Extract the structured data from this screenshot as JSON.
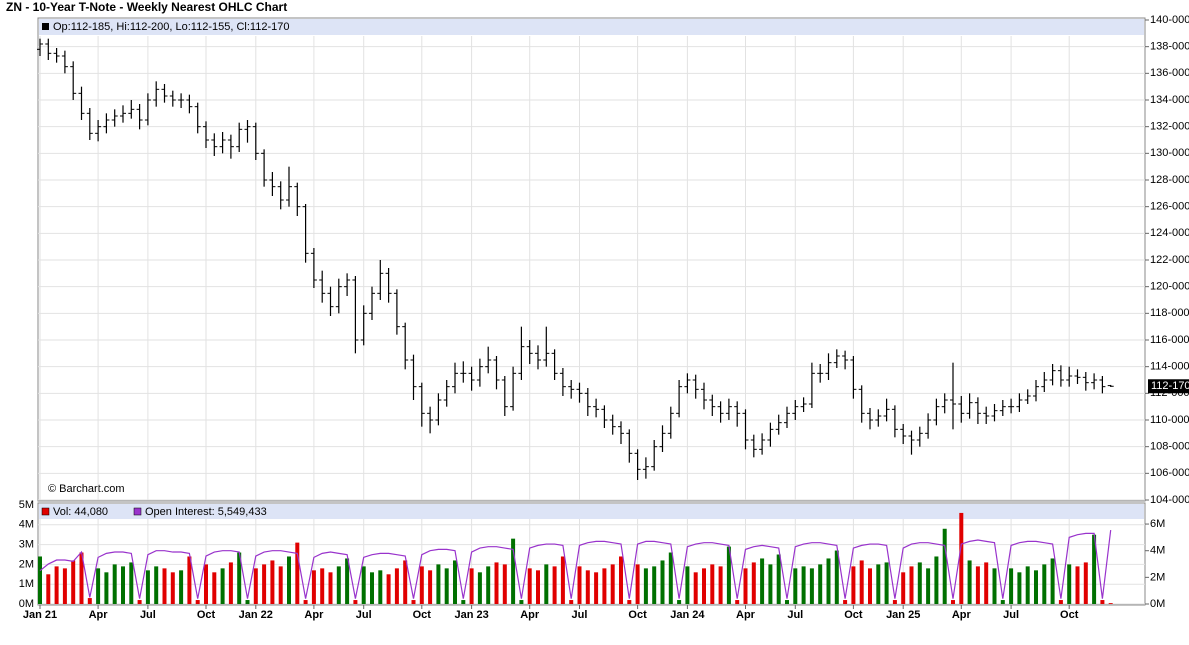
{
  "chart_data": [
    {
      "type": "ohlc",
      "title": "ZN - 10-Year T-Note - Weekly Nearest OHLC Chart",
      "legend_text": "Op:112-185, Hi:112-200, Lo:112-155, Cl:112-170",
      "annotation": "© Barchart.com",
      "last_label": "112-170",
      "color": "#000000",
      "grid": true,
      "ylim": [
        104,
        140
      ],
      "yticks": [
        {
          "value": 104,
          "label": "104-000"
        },
        {
          "value": 106,
          "label": "106-000"
        },
        {
          "value": 108,
          "label": "108-000"
        },
        {
          "value": 110,
          "label": "110-000"
        },
        {
          "value": 112,
          "label": "112-000"
        },
        {
          "value": 114,
          "label": "114-000"
        },
        {
          "value": 116,
          "label": "116-000"
        },
        {
          "value": 118,
          "label": "118-000"
        },
        {
          "value": 120,
          "label": "120-000"
        },
        {
          "value": 122,
          "label": "122-000"
        },
        {
          "value": 124,
          "label": "124-000"
        },
        {
          "value": 126,
          "label": "126-000"
        },
        {
          "value": 128,
          "label": "128-000"
        },
        {
          "value": 130,
          "label": "130-000"
        },
        {
          "value": 132,
          "label": "132-000"
        },
        {
          "value": 134,
          "label": "134-000"
        },
        {
          "value": 136,
          "label": "136-000"
        },
        {
          "value": 138,
          "label": "138-000"
        },
        {
          "value": 140,
          "label": "140-000"
        }
      ],
      "open": [
        137.8,
        138.2,
        137.5,
        137.3,
        136.5,
        134.5,
        133,
        131.5,
        132,
        132.5,
        132.8,
        133,
        133.3,
        132.5,
        134,
        134.8,
        134.3,
        134,
        134,
        133.5,
        132,
        131,
        130.5,
        131,
        130.5,
        131.8,
        132,
        130,
        128,
        127.5,
        126.5,
        127.5,
        126,
        122.5,
        120.5,
        119.5,
        118.5,
        120,
        120.5,
        116,
        118,
        119.5,
        121,
        119.5,
        117,
        114.5,
        112.5,
        110.5,
        110,
        111.5,
        112.5,
        113.5,
        113.5,
        113,
        114,
        114.5,
        113,
        111,
        113.5,
        115.5,
        115,
        114.5,
        115,
        113.5,
        112.5,
        112.3,
        112,
        111,
        110.8,
        110,
        109.5,
        109,
        107.5,
        106.3,
        106.5,
        108,
        109,
        110.5,
        112.5,
        113,
        112.3,
        111.5,
        111,
        110.5,
        111,
        110.5,
        108.5,
        107.8,
        108.5,
        109.3,
        109.8,
        110.5,
        111,
        111.2,
        113.5,
        113.5,
        114.3,
        114.8,
        114.5,
        112.3,
        110.5,
        110,
        110.3,
        110.8,
        109.3,
        108.8,
        108.5,
        109,
        110,
        111,
        111.5,
        111.2,
        110.5,
        111.3,
        110.5,
        110.3,
        110.7,
        111,
        111,
        111.5,
        111.8,
        112.5,
        113,
        113.7,
        113,
        113.3,
        113.2,
        112.8,
        113,
        112.58
      ],
      "high": [
        138.6,
        138.6,
        137.9,
        137.7,
        136.9,
        135,
        133.4,
        132.5,
        133,
        133.3,
        133.6,
        134,
        133.7,
        134.5,
        135.4,
        135.2,
        134.7,
        134.5,
        134.4,
        133.8,
        132.4,
        131.5,
        131.6,
        131.4,
        132.3,
        132.5,
        132.3,
        130.3,
        128.6,
        127.9,
        129,
        127.8,
        126.2,
        122.9,
        121.2,
        120,
        120.6,
        121,
        120.8,
        118.6,
        120,
        122,
        121.4,
        119.8,
        117.3,
        114.9,
        112.8,
        111,
        112,
        113,
        114.3,
        114.4,
        114,
        114.6,
        115.5,
        114.8,
        113.3,
        114,
        117,
        116,
        115.6,
        117,
        115.3,
        113.9,
        113,
        112.8,
        112.4,
        111.6,
        111.1,
        110.4,
        109.9,
        109.3,
        107.8,
        107.2,
        108.5,
        109.6,
        111,
        113,
        113.5,
        113.4,
        112.8,
        111.9,
        111.4,
        111.6,
        111.4,
        110.8,
        108.9,
        109,
        109.8,
        110.4,
        111,
        111.5,
        111.7,
        114.3,
        114.2,
        115,
        115.3,
        115.2,
        114.8,
        112.6,
        110.9,
        110.8,
        111.6,
        111.1,
        109.7,
        109.2,
        109.5,
        110.5,
        111.6,
        112,
        114.3,
        111.8,
        112,
        111.7,
        111,
        111.2,
        111.5,
        111.6,
        112,
        112.3,
        113,
        113.6,
        114.2,
        114.1,
        114,
        113.8,
        113.6,
        113.5,
        113.3,
        112.63
      ],
      "low": [
        137.3,
        137,
        136.8,
        136,
        134,
        132.5,
        131,
        130.9,
        131.5,
        132,
        132.3,
        132.6,
        131.8,
        132.1,
        133.5,
        133.8,
        133.5,
        133.4,
        133,
        131.5,
        130.4,
        129.8,
        130,
        129.6,
        130.1,
        130.8,
        129.5,
        127.5,
        126.8,
        125.8,
        126,
        125.3,
        121.8,
        119.9,
        118.8,
        117.8,
        118,
        119.3,
        115,
        115.6,
        117.5,
        119,
        118.8,
        116.4,
        113.8,
        111.5,
        109.5,
        109,
        109.6,
        111,
        112,
        112.8,
        112.2,
        112.5,
        113.5,
        112.3,
        110.3,
        110.7,
        113,
        114.2,
        113.8,
        114,
        113,
        111.8,
        111.6,
        111.3,
        110.3,
        110.2,
        109.4,
        108.9,
        108.2,
        106.8,
        105.5,
        105.6,
        106.2,
        107.6,
        108.6,
        110.2,
        112,
        111.6,
        110.8,
        110.3,
        109.8,
        110,
        109.5,
        107.8,
        107.2,
        107.4,
        108,
        108.9,
        109.4,
        110,
        110.6,
        110.9,
        112.8,
        113,
        113.9,
        113.8,
        111.6,
        109.8,
        109.3,
        109.5,
        109.9,
        108.7,
        108.2,
        107.4,
        108,
        108.6,
        109.6,
        110.5,
        109.3,
        109.8,
        110.1,
        109.7,
        109.7,
        109.9,
        110.3,
        110.5,
        110.6,
        111.2,
        111.4,
        112.1,
        112.6,
        112.5,
        112.5,
        112.7,
        112.2,
        112.3,
        112,
        112.48
      ],
      "close": [
        138.2,
        137.5,
        137.3,
        136.5,
        134.5,
        133,
        131.5,
        132,
        132.5,
        132.8,
        133,
        133.3,
        132.5,
        134,
        134.8,
        134.3,
        134,
        134,
        133.5,
        132,
        131,
        130.5,
        131,
        130.5,
        131.8,
        132,
        130,
        128,
        127.5,
        126.5,
        127.5,
        126,
        122.5,
        120.5,
        119.5,
        118.5,
        120,
        120.5,
        116,
        118,
        119.5,
        121,
        119.5,
        117,
        114.5,
        112.5,
        110.5,
        110,
        111.5,
        112.5,
        113.5,
        113.5,
        113,
        114,
        114.5,
        113,
        111,
        113.5,
        115.5,
        115,
        114.5,
        115,
        113.5,
        112.5,
        112.3,
        112,
        111,
        110.8,
        110,
        109.5,
        109,
        107.5,
        106.3,
        106.5,
        108,
        109,
        110.5,
        112.5,
        113,
        112.3,
        111.5,
        111,
        110.5,
        111,
        110.5,
        108.5,
        107.8,
        108.5,
        109.3,
        109.8,
        110.5,
        111,
        111.2,
        113.5,
        113.5,
        114.3,
        114.8,
        114.5,
        112.3,
        110.5,
        110,
        110.3,
        110.8,
        109.3,
        108.8,
        108.5,
        109,
        110,
        111,
        111.5,
        111.2,
        110.5,
        111.3,
        110.5,
        110.3,
        110.7,
        111,
        111,
        111.5,
        111.8,
        112.5,
        113,
        113.7,
        113,
        113.3,
        113.2,
        112.8,
        113,
        112.5,
        112.53
      ]
    },
    {
      "type": "bar",
      "categories": [
        "Jan 21",
        null,
        null,
        null,
        null,
        null,
        null,
        "Apr",
        null,
        null,
        null,
        null,
        null,
        "Jul",
        null,
        null,
        null,
        null,
        null,
        null,
        "Oct",
        null,
        null,
        null,
        null,
        null,
        "Jan 22",
        null,
        null,
        null,
        null,
        null,
        null,
        "Apr",
        null,
        null,
        null,
        null,
        null,
        "Jul",
        null,
        null,
        null,
        null,
        null,
        null,
        "Oct",
        null,
        null,
        null,
        null,
        null,
        "Jan 23",
        null,
        null,
        null,
        null,
        null,
        null,
        "Apr",
        null,
        null,
        null,
        null,
        null,
        "Jul",
        null,
        null,
        null,
        null,
        null,
        null,
        "Oct",
        null,
        null,
        null,
        null,
        null,
        "Jan 24",
        null,
        null,
        null,
        null,
        null,
        null,
        "Apr",
        null,
        null,
        null,
        null,
        null,
        "Jul",
        null,
        null,
        null,
        null,
        null,
        null,
        "Oct",
        null,
        null,
        null,
        null,
        null,
        "Jan 25",
        null,
        null,
        null,
        null,
        null,
        null,
        "Apr",
        null,
        null,
        null,
        null,
        null,
        "Jul",
        null,
        null,
        null,
        null,
        null,
        null,
        "Oct",
        null,
        null,
        null,
        null,
        null
      ],
      "ylim": [
        0,
        5
      ],
      "yticks": [
        {
          "value": 0,
          "label": "0M"
        },
        {
          "value": 1,
          "label": "1M"
        },
        {
          "value": 2,
          "label": "2M"
        },
        {
          "value": 3,
          "label": "3M"
        },
        {
          "value": 4,
          "label": "4M"
        },
        {
          "value": 5,
          "label": "5M"
        }
      ],
      "y2lim": [
        0,
        7.43
      ],
      "y2ticks": [
        {
          "value": 0,
          "label": "0M"
        },
        {
          "value": 2,
          "label": "2M"
        },
        {
          "value": 4,
          "label": "4M"
        },
        {
          "value": 6,
          "label": "6M"
        }
      ],
      "series": [
        {
          "name": "Vol: 44,080",
          "color": "#e00000",
          "up_color": "#007000",
          "values": [
            2.4,
            1.5,
            1.9,
            1.8,
            2.2,
            2.6,
            0.3,
            1.8,
            1.6,
            2.0,
            1.9,
            2.1,
            0.2,
            1.7,
            1.9,
            1.8,
            1.6,
            1.7,
            2.4,
            0.2,
            2.0,
            1.6,
            1.8,
            2.1,
            2.6,
            0.2,
            1.8,
            2.0,
            2.2,
            1.9,
            2.4,
            3.1,
            0.2,
            1.7,
            1.8,
            1.6,
            1.9,
            2.3,
            0.2,
            1.9,
            1.6,
            1.7,
            1.5,
            1.8,
            2.2,
            0.2,
            1.9,
            1.7,
            2.0,
            1.8,
            2.2,
            0.2,
            1.8,
            1.6,
            1.9,
            2.1,
            2.0,
            3.3,
            0.2,
            1.8,
            1.7,
            2.0,
            1.9,
            2.4,
            0.2,
            1.9,
            1.7,
            1.6,
            1.8,
            2.0,
            2.4,
            0.2,
            2.0,
            1.8,
            1.9,
            2.2,
            2.6,
            0.2,
            1.9,
            1.6,
            1.8,
            2.0,
            1.9,
            2.9,
            0.2,
            1.8,
            2.1,
            2.3,
            2.0,
            2.5,
            0.2,
            1.8,
            1.9,
            1.8,
            2.0,
            2.3,
            2.7,
            0.2,
            1.9,
            2.2,
            1.8,
            2.0,
            2.1,
            0.2,
            1.6,
            1.9,
            2.1,
            1.8,
            2.4,
            3.8,
            0.2,
            4.6,
            2.2,
            1.9,
            2.1,
            1.8,
            0.2,
            1.8,
            1.6,
            1.9,
            1.7,
            2.0,
            2.3,
            0.2,
            2.0,
            1.9,
            2.1,
            3.5,
            0.2,
            0.044
          ]
        },
        {
          "name": "Open Interest: 5,549,433",
          "color": "#9933cc",
          "type": "line",
          "axis": "y2",
          "values": [
            2.5,
            3.0,
            3.3,
            3.3,
            3.2,
            3.9,
            0.5,
            3.5,
            3.8,
            3.9,
            3.9,
            3.8,
            0.4,
            3.7,
            4.0,
            4.0,
            3.9,
            3.9,
            3.8,
            0.4,
            3.6,
            3.9,
            4.0,
            4.0,
            3.9,
            0.4,
            3.6,
            3.9,
            4.0,
            4.0,
            3.9,
            3.8,
            0.4,
            3.5,
            3.8,
            3.9,
            3.8,
            3.7,
            0.4,
            3.5,
            3.7,
            3.8,
            3.8,
            3.7,
            3.6,
            0.4,
            3.7,
            4.0,
            4.1,
            4.1,
            4.0,
            0.4,
            3.9,
            4.2,
            4.3,
            4.3,
            4.2,
            4.1,
            0.4,
            4.2,
            4.4,
            4.5,
            4.5,
            4.4,
            0.4,
            4.4,
            4.6,
            4.7,
            4.7,
            4.6,
            4.5,
            0.4,
            4.5,
            4.7,
            4.7,
            4.6,
            4.5,
            0.4,
            4.3,
            4.5,
            4.6,
            4.6,
            4.5,
            4.4,
            0.4,
            4.1,
            4.3,
            4.4,
            4.3,
            4.2,
            0.4,
            4.3,
            4.5,
            4.6,
            4.6,
            4.5,
            4.4,
            0.4,
            4.2,
            4.4,
            4.5,
            4.5,
            4.4,
            0.4,
            4.2,
            4.5,
            4.6,
            4.6,
            4.5,
            4.4,
            0.4,
            4.5,
            4.7,
            4.8,
            4.7,
            4.6,
            0.4,
            4.4,
            4.6,
            4.7,
            4.7,
            4.6,
            4.5,
            0.4,
            5.0,
            5.2,
            5.3,
            5.3,
            0.4,
            5.549
          ]
        }
      ]
    }
  ]
}
